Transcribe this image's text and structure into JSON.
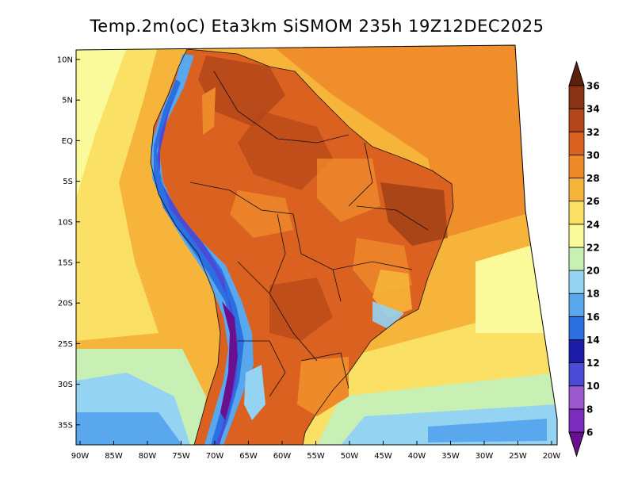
{
  "title": "Temp.2m(oC) Eta3km SiSMOM 235h 19Z12DEC2025",
  "map": {
    "variable": "2 m air temperature",
    "units": "°C",
    "model": "Eta3km SiSMOM",
    "forecast_hour": "235h",
    "valid_time": "19Z12DEC2025",
    "region": "South America"
  },
  "axes": {
    "lat_labels": [
      "10N",
      "5N",
      "EQ",
      "5S",
      "10S",
      "15S",
      "20S",
      "25S",
      "30S",
      "35S"
    ],
    "lon_labels": [
      "90W",
      "85W",
      "80W",
      "75W",
      "70W",
      "65W",
      "60W",
      "55W",
      "50W",
      "45W",
      "40W",
      "35W",
      "30W",
      "25W",
      "20W"
    ]
  },
  "colorbar": {
    "labels": [
      "6",
      "8",
      "10",
      "12",
      "14",
      "16",
      "18",
      "20",
      "22",
      "24",
      "26",
      "28",
      "30",
      "32",
      "34",
      "36"
    ],
    "colors": [
      "#6a0f8e",
      "#7b2cbf",
      "#9b59d0",
      "#4b4bd6",
      "#1c1ca8",
      "#2b6fe0",
      "#59a7ec",
      "#94d4f2",
      "#c8f0b4",
      "#fafa9a",
      "#fae165",
      "#f6b53a",
      "#ef8a2a",
      "#da6120",
      "#b3461a",
      "#8a3214",
      "#5e200d"
    ]
  },
  "icons": {
    "colorbar_arrow_low": "triangle-down",
    "colorbar_arrow_high": "triangle-up"
  }
}
